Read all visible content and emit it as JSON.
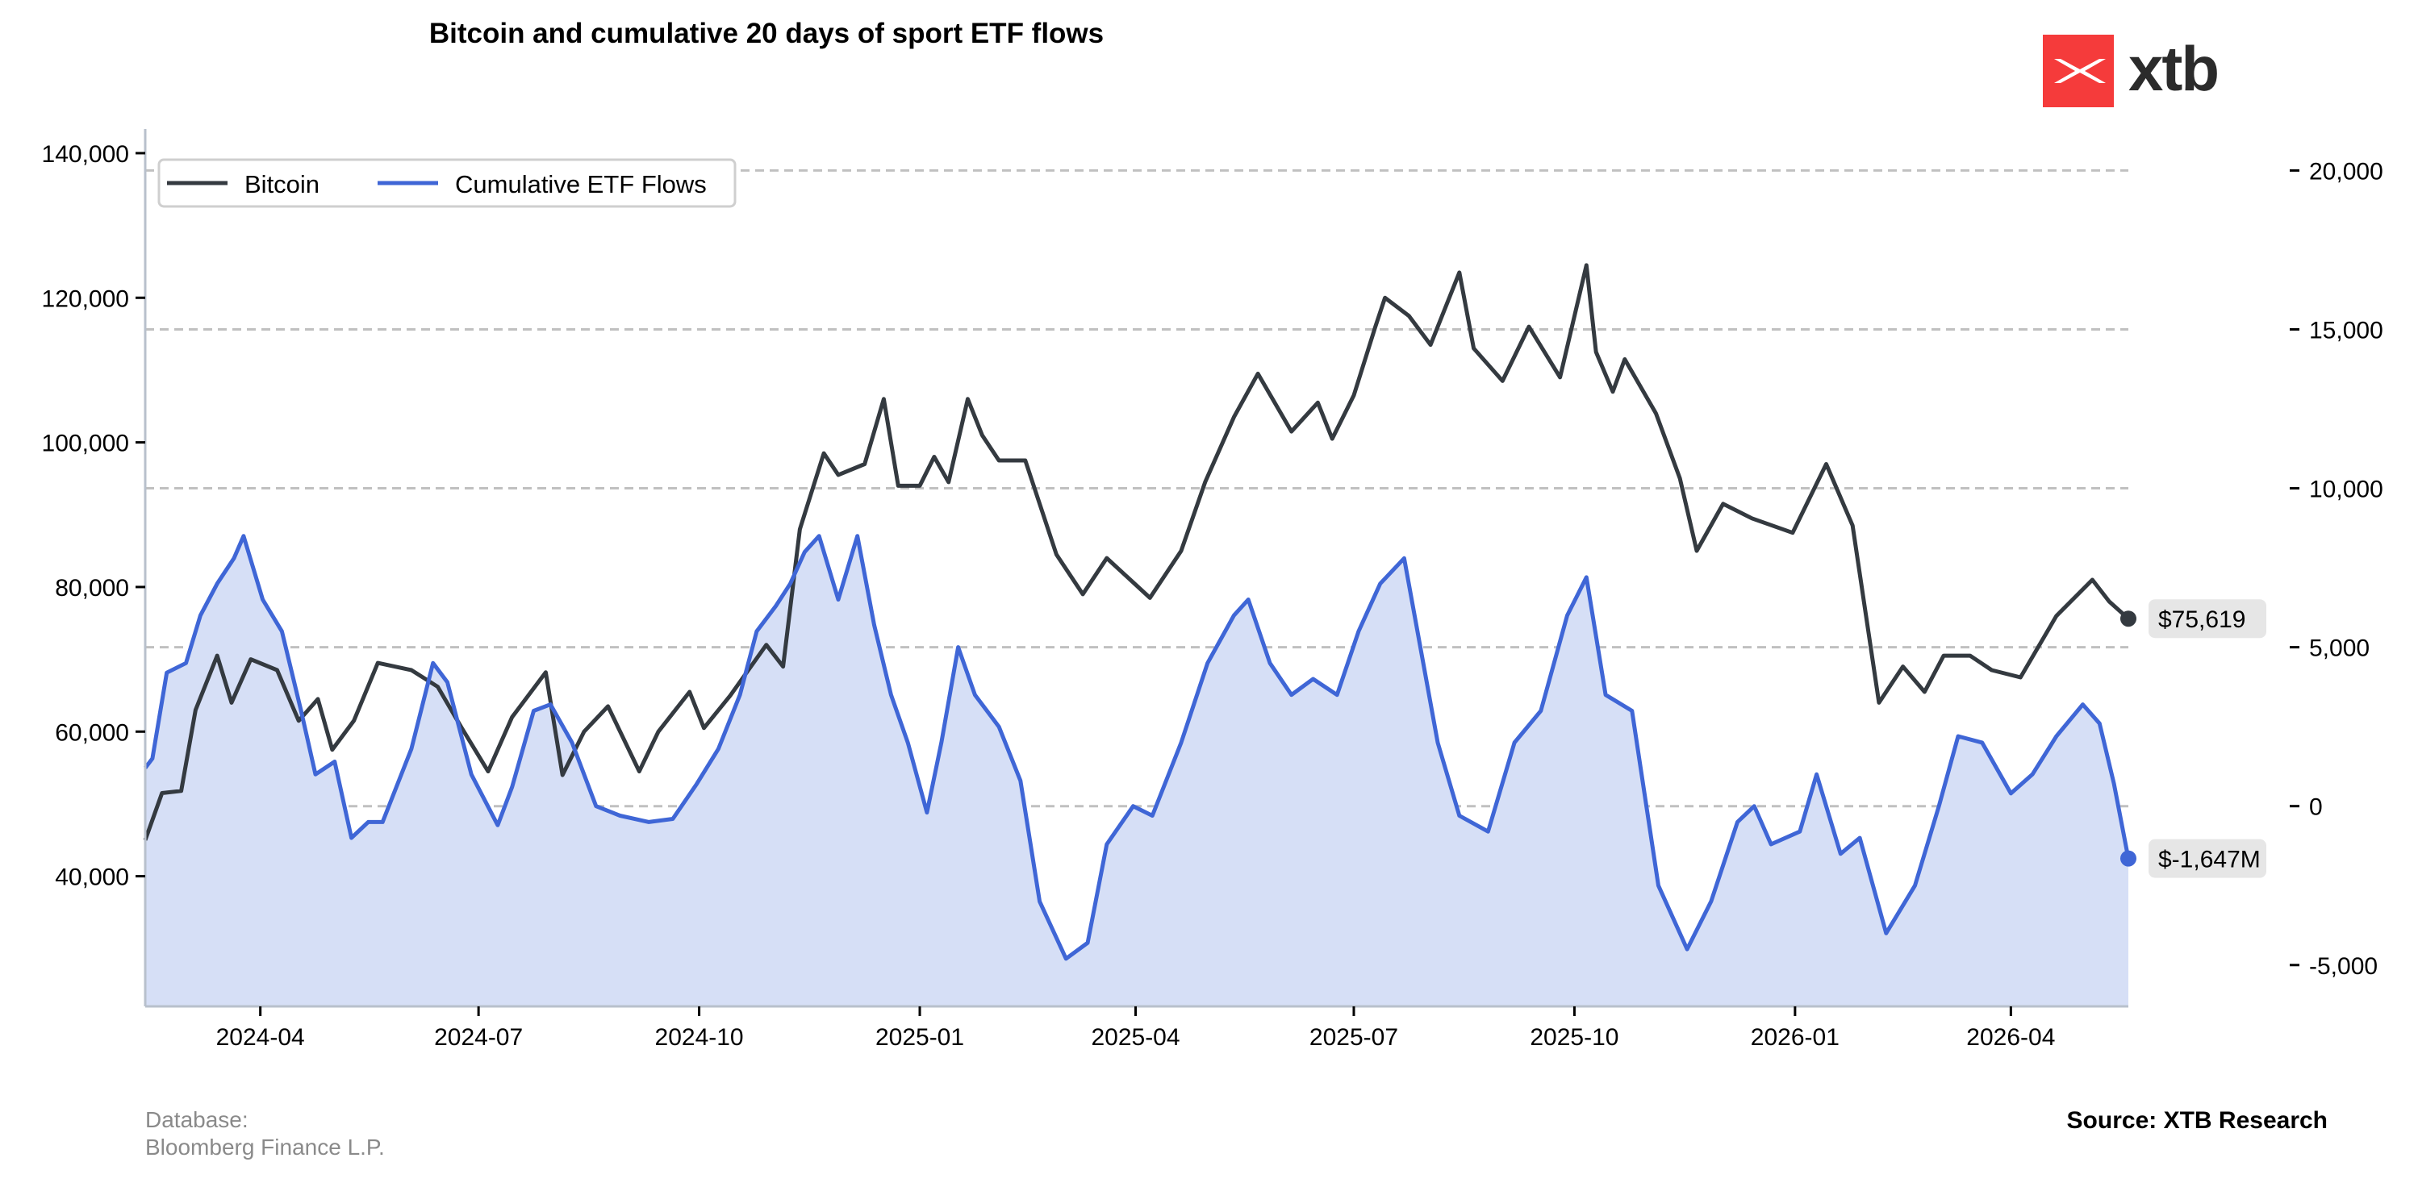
{
  "title": "Bitcoin and cumulative 20 days of sport ETF flows",
  "logo_text": "xtb",
  "footer": {
    "database_label": "Database:",
    "database_value": "Bloomberg Finance L.P.",
    "source": "Source: XTB Research"
  },
  "colors": {
    "bitcoin": "#343a40",
    "etf": "#3f66d6",
    "etf_fill": "#d6dff6",
    "brand": "#f53b3b",
    "grid": "#c0c0c0"
  },
  "chart_data": {
    "type": "line",
    "title": "Bitcoin and cumulative 20 days of sport ETF flows",
    "grid": true,
    "legend_position": "top-left",
    "x_range": [
      "2024-02-13",
      "2026-05-20"
    ],
    "x_ticks": [
      "2024-04",
      "2024-07",
      "2024-10",
      "2025-01",
      "2025-04",
      "2025-07",
      "2025-10",
      "2026-01",
      "2026-04"
    ],
    "y_left": {
      "ticks": [
        40000,
        60000,
        80000,
        100000,
        120000,
        140000
      ],
      "labels": [
        "40,000",
        "60,000",
        "80,000",
        "100,000",
        "120,000",
        "140,000"
      ],
      "range": [
        22000,
        142000
      ]
    },
    "y_right": {
      "ticks": [
        -5000,
        0,
        5000,
        10000,
        15000,
        20000
      ],
      "labels": [
        "-5,000",
        "0",
        "5,000",
        "10,000",
        "15,000",
        "20,000"
      ],
      "range": [
        -6300,
        21000
      ]
    },
    "series": [
      {
        "name": "Bitcoin",
        "axis": "left",
        "points": [
          [
            "2024-02-13",
            45000
          ],
          [
            "2024-02-20",
            51500
          ],
          [
            "2024-02-28",
            51800
          ],
          [
            "2024-03-05",
            63000
          ],
          [
            "2024-03-14",
            70500
          ],
          [
            "2024-03-20",
            64000
          ],
          [
            "2024-03-28",
            70000
          ],
          [
            "2024-04-08",
            68500
          ],
          [
            "2024-04-17",
            61500
          ],
          [
            "2024-04-25",
            64500
          ],
          [
            "2024-05-01",
            57500
          ],
          [
            "2024-05-10",
            61500
          ],
          [
            "2024-05-20",
            69500
          ],
          [
            "2024-06-03",
            68500
          ],
          [
            "2024-06-14",
            66200
          ],
          [
            "2024-06-24",
            60500
          ],
          [
            "2024-07-05",
            54500
          ],
          [
            "2024-07-15",
            62000
          ],
          [
            "2024-07-29",
            68200
          ],
          [
            "2024-08-05",
            54000
          ],
          [
            "2024-08-14",
            60000
          ],
          [
            "2024-08-24",
            63500
          ],
          [
            "2024-09-06",
            54500
          ],
          [
            "2024-09-14",
            60000
          ],
          [
            "2024-09-27",
            65500
          ],
          [
            "2024-10-03",
            60500
          ],
          [
            "2024-10-14",
            65000
          ],
          [
            "2024-10-29",
            72000
          ],
          [
            "2024-11-05",
            69000
          ],
          [
            "2024-11-12",
            88000
          ],
          [
            "2024-11-22",
            98500
          ],
          [
            "2024-11-28",
            95500
          ],
          [
            "2024-12-09",
            97000
          ],
          [
            "2024-12-17",
            106000
          ],
          [
            "2024-12-23",
            94000
          ],
          [
            "2025-01-01",
            94000
          ],
          [
            "2025-01-07",
            98000
          ],
          [
            "2025-01-13",
            94500
          ],
          [
            "2025-01-21",
            106000
          ],
          [
            "2025-01-27",
            101000
          ],
          [
            "2025-02-03",
            97500
          ],
          [
            "2025-02-14",
            97500
          ],
          [
            "2025-02-27",
            84500
          ],
          [
            "2025-03-10",
            79000
          ],
          [
            "2025-03-20",
            84000
          ],
          [
            "2025-04-07",
            78500
          ],
          [
            "2025-04-20",
            85000
          ],
          [
            "2025-04-30",
            94500
          ],
          [
            "2025-05-12",
            103500
          ],
          [
            "2025-05-22",
            109500
          ],
          [
            "2025-06-05",
            101500
          ],
          [
            "2025-06-16",
            105500
          ],
          [
            "2025-06-22",
            100500
          ],
          [
            "2025-07-01",
            106500
          ],
          [
            "2025-07-10",
            116000
          ],
          [
            "2025-07-14",
            120000
          ],
          [
            "2025-07-24",
            117500
          ],
          [
            "2025-08-02",
            113500
          ],
          [
            "2025-08-14",
            123500
          ],
          [
            "2025-08-20",
            113000
          ],
          [
            "2025-09-01",
            108500
          ],
          [
            "2025-09-12",
            116000
          ],
          [
            "2025-09-25",
            109000
          ],
          [
            "2025-10-06",
            124500
          ],
          [
            "2025-10-10",
            112500
          ],
          [
            "2025-10-17",
            107000
          ],
          [
            "2025-10-22",
            111500
          ],
          [
            "2025-11-04",
            104000
          ],
          [
            "2025-11-14",
            95000
          ],
          [
            "2025-11-21",
            85000
          ],
          [
            "2025-12-02",
            91500
          ],
          [
            "2025-12-14",
            89500
          ],
          [
            "2025-12-31",
            87500
          ],
          [
            "2026-01-14",
            97000
          ],
          [
            "2026-01-25",
            88500
          ],
          [
            "2026-02-05",
            64000
          ],
          [
            "2026-02-15",
            69000
          ],
          [
            "2026-02-24",
            65500
          ],
          [
            "2026-03-04",
            70500
          ],
          [
            "2026-03-15",
            70500
          ],
          [
            "2026-03-24",
            68500
          ],
          [
            "2026-04-05",
            67500
          ],
          [
            "2026-04-20",
            76000
          ],
          [
            "2026-05-05",
            81000
          ],
          [
            "2026-05-12",
            78000
          ],
          [
            "2026-05-20",
            75619
          ]
        ],
        "end_label": "$75,619"
      },
      {
        "name": "Cumulative ETF Flows",
        "axis": "right",
        "points": [
          [
            "2024-02-13",
            1200
          ],
          [
            "2024-02-16",
            1500
          ],
          [
            "2024-02-22",
            4200
          ],
          [
            "2024-03-01",
            4500
          ],
          [
            "2024-03-07",
            6000
          ],
          [
            "2024-03-14",
            7000
          ],
          [
            "2024-03-21",
            7800
          ],
          [
            "2024-03-25",
            8500
          ],
          [
            "2024-04-02",
            6500
          ],
          [
            "2024-04-10",
            5500
          ],
          [
            "2024-04-18",
            3000
          ],
          [
            "2024-04-24",
            1000
          ],
          [
            "2024-05-02",
            1400
          ],
          [
            "2024-05-09",
            -1000
          ],
          [
            "2024-05-16",
            -500
          ],
          [
            "2024-05-22",
            -500
          ],
          [
            "2024-06-03",
            1800
          ],
          [
            "2024-06-12",
            4500
          ],
          [
            "2024-06-18",
            3900
          ],
          [
            "2024-06-28",
            1000
          ],
          [
            "2024-07-09",
            -600
          ],
          [
            "2024-07-15",
            600
          ],
          [
            "2024-07-24",
            3000
          ],
          [
            "2024-07-31",
            3200
          ],
          [
            "2024-08-09",
            2000
          ],
          [
            "2024-08-19",
            0
          ],
          [
            "2024-08-29",
            -300
          ],
          [
            "2024-09-10",
            -500
          ],
          [
            "2024-09-20",
            -400
          ],
          [
            "2024-09-30",
            700
          ],
          [
            "2024-10-09",
            1800
          ],
          [
            "2024-10-18",
            3500
          ],
          [
            "2024-10-25",
            5500
          ],
          [
            "2024-11-02",
            6300
          ],
          [
            "2024-11-08",
            7000
          ],
          [
            "2024-11-14",
            8000
          ],
          [
            "2024-11-20",
            8500
          ],
          [
            "2024-11-28",
            6500
          ],
          [
            "2024-12-06",
            8500
          ],
          [
            "2024-12-13",
            5700
          ],
          [
            "2024-12-20",
            3500
          ],
          [
            "2024-12-27",
            2000
          ],
          [
            "2025-01-04",
            -200
          ],
          [
            "2025-01-10",
            2000
          ],
          [
            "2025-01-17",
            5000
          ],
          [
            "2025-01-24",
            3500
          ],
          [
            "2025-02-03",
            2500
          ],
          [
            "2025-02-12",
            800
          ],
          [
            "2025-02-20",
            -3000
          ],
          [
            "2025-03-03",
            -4800
          ],
          [
            "2025-03-12",
            -4300
          ],
          [
            "2025-03-20",
            -1200
          ],
          [
            "2025-03-31",
            0
          ],
          [
            "2025-04-08",
            -300
          ],
          [
            "2025-04-20",
            2000
          ],
          [
            "2025-05-01",
            4500
          ],
          [
            "2025-05-12",
            6000
          ],
          [
            "2025-05-18",
            6500
          ],
          [
            "2025-05-27",
            4500
          ],
          [
            "2025-06-05",
            3500
          ],
          [
            "2025-06-14",
            4000
          ],
          [
            "2025-06-24",
            3500
          ],
          [
            "2025-07-03",
            5500
          ],
          [
            "2025-07-12",
            7000
          ],
          [
            "2025-07-22",
            7800
          ],
          [
            "2025-08-05",
            2000
          ],
          [
            "2025-08-14",
            -300
          ],
          [
            "2025-08-26",
            -800
          ],
          [
            "2025-09-06",
            2000
          ],
          [
            "2025-09-17",
            3000
          ],
          [
            "2025-09-28",
            6000
          ],
          [
            "2025-10-06",
            7200
          ],
          [
            "2025-10-14",
            3500
          ],
          [
            "2025-10-25",
            3000
          ],
          [
            "2025-11-05",
            -2500
          ],
          [
            "2025-11-17",
            -4500
          ],
          [
            "2025-11-27",
            -3000
          ],
          [
            "2025-12-08",
            -500
          ],
          [
            "2025-12-15",
            0
          ],
          [
            "2025-12-22",
            -1200
          ],
          [
            "2026-01-03",
            -800
          ],
          [
            "2026-01-10",
            1000
          ],
          [
            "2026-01-20",
            -1500
          ],
          [
            "2026-01-28",
            -1000
          ],
          [
            "2026-02-08",
            -4000
          ],
          [
            "2026-02-20",
            -2500
          ],
          [
            "2026-03-02",
            0
          ],
          [
            "2026-03-10",
            2200
          ],
          [
            "2026-03-20",
            2000
          ],
          [
            "2026-04-01",
            400
          ],
          [
            "2026-04-10",
            1000
          ],
          [
            "2026-04-20",
            2200
          ],
          [
            "2026-05-01",
            3200
          ],
          [
            "2026-05-08",
            2600
          ],
          [
            "2026-05-14",
            700
          ],
          [
            "2026-05-20",
            -1647
          ]
        ],
        "end_label": "$-1,647M"
      }
    ]
  }
}
